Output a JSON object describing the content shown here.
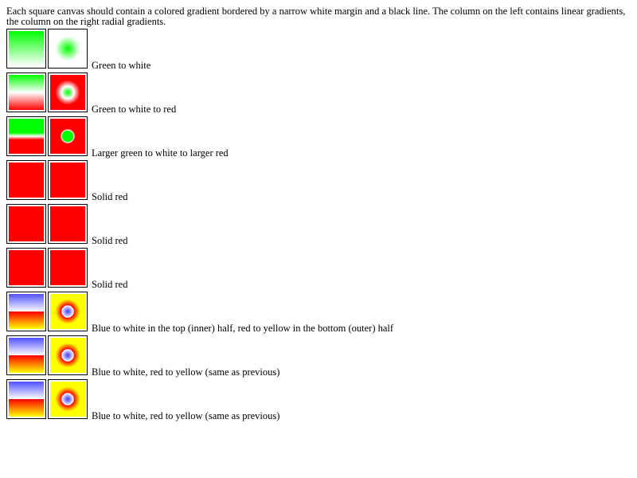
{
  "intro": "Each square canvas should contain a colored gradient bordered by a narrow white margin and a black line. The column on the left contains linear gradients, the column on the right radial gradients.",
  "rows": [
    {
      "label": "Green to white",
      "linear": "linear-gradient(to bottom, #00ff00 0%, #ffffff 100%)",
      "radial": "radial-gradient(circle at 50% 50%, #00ff00 0%, #ffffff 50%)"
    },
    {
      "label": "Green to white to red",
      "linear": "linear-gradient(to bottom, #00ff00 0%, #ffffff 50%, #ff0000 100%)",
      "radial": "radial-gradient(circle at 50% 50%, #00ff00 0%, #ffffff 25%, #ff0000 50%)"
    },
    {
      "label": "Larger green to white to larger red",
      "linear": "linear-gradient(to bottom, #00ff00 0%, #00ff00 40%, #ffffff 50%, #ff0000 60%, #ff0000 100%)",
      "radial": "radial-gradient(circle at 50% 50%, #00ff00 0%, #00ff00 22%, #ffffff 25%, #ff0000 30%, #ff0000 100%)"
    },
    {
      "label": "Solid red",
      "linear": "#ff0000",
      "radial": "#ff0000"
    },
    {
      "label": "Solid red",
      "linear": "#ff0000",
      "radial": "#ff0000"
    },
    {
      "label": "Solid red",
      "linear": "#ff0000",
      "radial": "#ff0000"
    },
    {
      "label": "Blue to white in the top (inner) half, red to yellow in the bottom (outer) half",
      "linear": "linear-gradient(to bottom, #5050ff 0%, #ffffff 50%, #ff0000 50%, #ffff00 100%)",
      "radial": "radial-gradient(circle at 50% 50%, #3c3cff 0%, #ffffff 25%, #ff0000 25%, #ffff00 50%, #ffff00 100%)"
    },
    {
      "label": "Blue to white, red to yellow (same as previous)",
      "linear": "linear-gradient(to bottom, #5050ff 0%, #ffffff 50%, #ff0000 50%, #ffff00 100%)",
      "radial": "radial-gradient(circle at 50% 50%, #3c3cff 0%, #ffffff 25%, #ff0000 25%, #ffff00 50%, #ffff00 100%)"
    },
    {
      "label": "Blue to white, red to yellow (same as previous)",
      "linear": "linear-gradient(to bottom, #5050ff 0%, #ffffff 50%, #ff0000 50%, #ffff00 100%)",
      "radial": "radial-gradient(circle at 50% 50%, #3c3cff 0%, #ffffff 25%, #ff0000 25%, #ffff00 50%, #ffff00 100%)"
    }
  ]
}
